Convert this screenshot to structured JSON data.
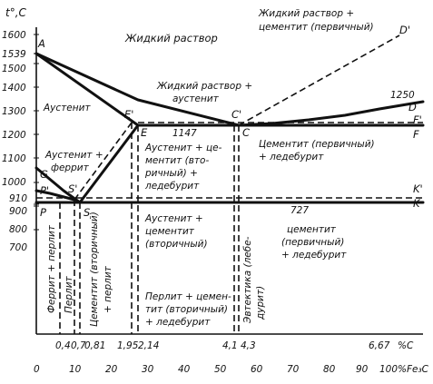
{
  "axes": {
    "y_title": "t°,C",
    "y_ticks": [
      "1600",
      "1539",
      "1500",
      "1400",
      "1300",
      "1200",
      "1100",
      "1000",
      "910",
      "900",
      "800",
      "700"
    ],
    "x_carbon_ticks": [
      "0,4",
      "0,7",
      "0,81",
      "1,95",
      "2,14",
      "4,1",
      "4,3",
      "6,67"
    ],
    "x_carbon_unit": "%C",
    "x_fe3c_ticks": [
      "0",
      "10",
      "20",
      "30",
      "40",
      "50",
      "60",
      "70",
      "80",
      "90",
      "100"
    ],
    "x_fe3c_unit": "%Fe₃C"
  },
  "points": {
    "A": "A",
    "D_prime": "D'",
    "D": "D",
    "C_prime": "C'",
    "C": "C",
    "E_prime": "E'",
    "E": "E",
    "F_prime": "F'",
    "F": "F",
    "G": "G",
    "P_prime": "P'",
    "P": "P",
    "S_prime": "S'",
    "S": "S",
    "K_prime": "K'",
    "K": "K"
  },
  "temps": {
    "t1147": "1147",
    "t727": "727",
    "t1250": "1250"
  },
  "regions": {
    "liquid": "Жидкий раствор",
    "liquid_cementite_1": "Жидкий раствор +",
    "liquid_cementite_2": "цементит (первичный)",
    "liquid_austenite_1": "Жидкий раствор +",
    "liquid_austenite_2": "аустенит",
    "austenite": "Аустенит",
    "austenite_ferrite_1": "Аустенит +",
    "austenite_ferrite_2": "феррит",
    "aus_cem_led_1": "Аустенит + це-",
    "aus_cem_led_2": "ментит (вто-",
    "aus_cem_led_3": "ричный) +",
    "aus_cem_led_4": "ледебурит",
    "cem_led_upper_1": "Цементит (первичный)",
    "cem_led_upper_2": "+ ледебурит",
    "aus_cem2_1": "Аустенит +",
    "aus_cem2_2": "цементит",
    "aus_cem2_3": "(вторичный)",
    "cem_led_lower_1": "цементит",
    "cem_led_lower_2": "(первичный)",
    "cem_led_lower_3": "+ ледебурит",
    "ferrite_pearlite": "Феррит + перлит",
    "pearlite": "Перлит",
    "cem2_pearlite_1": "Цементит (вторичный)",
    "cem2_pearlite_2": "+ перлит",
    "per_cem_led_1": "Перлит + цемен-",
    "per_cem_led_2": "тит (вторичный)",
    "per_cem_led_3": "+ ледебурит",
    "eutectic_1": "Эвтектика (лебе-",
    "eutectic_2": "дурит)"
  }
}
